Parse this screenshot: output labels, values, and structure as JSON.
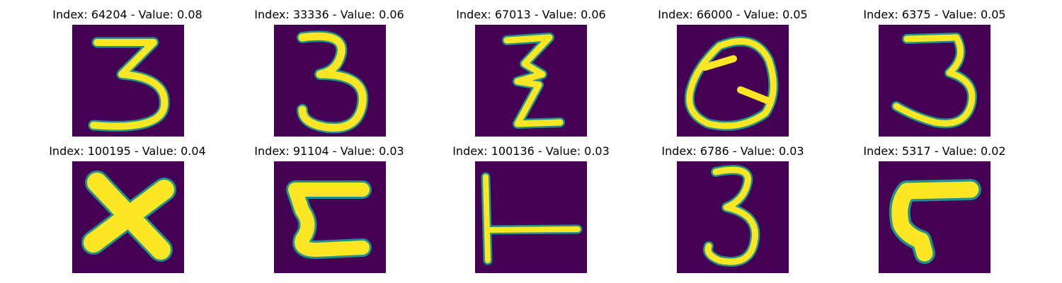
{
  "colors": {
    "background": "#440154",
    "stroke": "#fde725",
    "stroke_edge": "#21918c"
  },
  "panels": [
    {
      "title": "Index: 64204 - Value: 0.08",
      "glyph": "digit-3"
    },
    {
      "title": "Index: 33336 - Value: 0.06",
      "glyph": "digit-3"
    },
    {
      "title": "Index: 67013 - Value: 0.06",
      "glyph": "z-shape"
    },
    {
      "title": "Index: 66000 - Value: 0.05",
      "glyph": "q-shape"
    },
    {
      "title": "Index: 6375 - Value: 0.05",
      "glyph": "digit-3"
    },
    {
      "title": "Index: 100195 - Value: 0.04",
      "glyph": "x-shape"
    },
    {
      "title": "Index: 91104 - Value: 0.03",
      "glyph": "e-shape"
    },
    {
      "title": "Index: 100136 - Value: 0.03",
      "glyph": "t-shape"
    },
    {
      "title": "Index: 6786 - Value: 0.03",
      "glyph": "digit-3"
    },
    {
      "title": "Index: 5317 - Value: 0.02",
      "glyph": "r-shape"
    }
  ]
}
